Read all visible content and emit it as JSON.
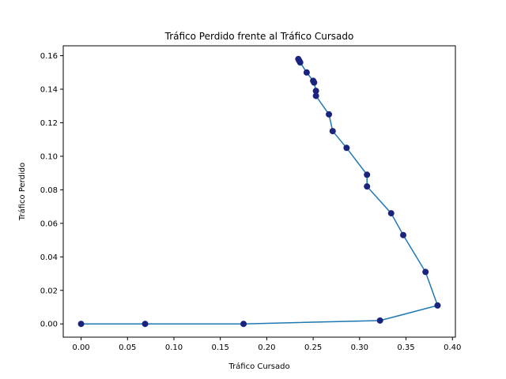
{
  "chart_data": {
    "type": "scatter",
    "title": "Tráfico Perdido frente al Tráfico Cursado",
    "xlabel": "Tráfico Cursado",
    "ylabel": "Tráfico Perdido",
    "xlim": [
      -0.0192,
      0.4032
    ],
    "ylim": [
      -0.0079,
      0.1659
    ],
    "xticks": [
      "0.00",
      "0.05",
      "0.10",
      "0.15",
      "0.20",
      "0.25",
      "0.30",
      "0.35",
      "0.40"
    ],
    "yticks": [
      "0.00",
      "0.02",
      "0.04",
      "0.06",
      "0.08",
      "0.10",
      "0.12",
      "0.14",
      "0.16"
    ],
    "grid": false,
    "series": [
      {
        "style": "line+markers",
        "line_color": "#1f77b4",
        "marker_color": "#1a237e",
        "points": [
          [
            0.0,
            0.0
          ],
          [
            0.069,
            0.0
          ],
          [
            0.175,
            0.0
          ],
          [
            0.322,
            0.002
          ],
          [
            0.384,
            0.011
          ],
          [
            0.371,
            0.031
          ],
          [
            0.347,
            0.053
          ],
          [
            0.334,
            0.066
          ],
          [
            0.308,
            0.082
          ],
          [
            0.308,
            0.089
          ],
          [
            0.286,
            0.105
          ],
          [
            0.271,
            0.115
          ],
          [
            0.267,
            0.125
          ],
          [
            0.253,
            0.136
          ],
          [
            0.253,
            0.139
          ],
          [
            0.251,
            0.144
          ],
          [
            0.25,
            0.145
          ],
          [
            0.243,
            0.15
          ],
          [
            0.236,
            0.156
          ],
          [
            0.235,
            0.157
          ],
          [
            0.234,
            0.158
          ]
        ]
      }
    ]
  }
}
